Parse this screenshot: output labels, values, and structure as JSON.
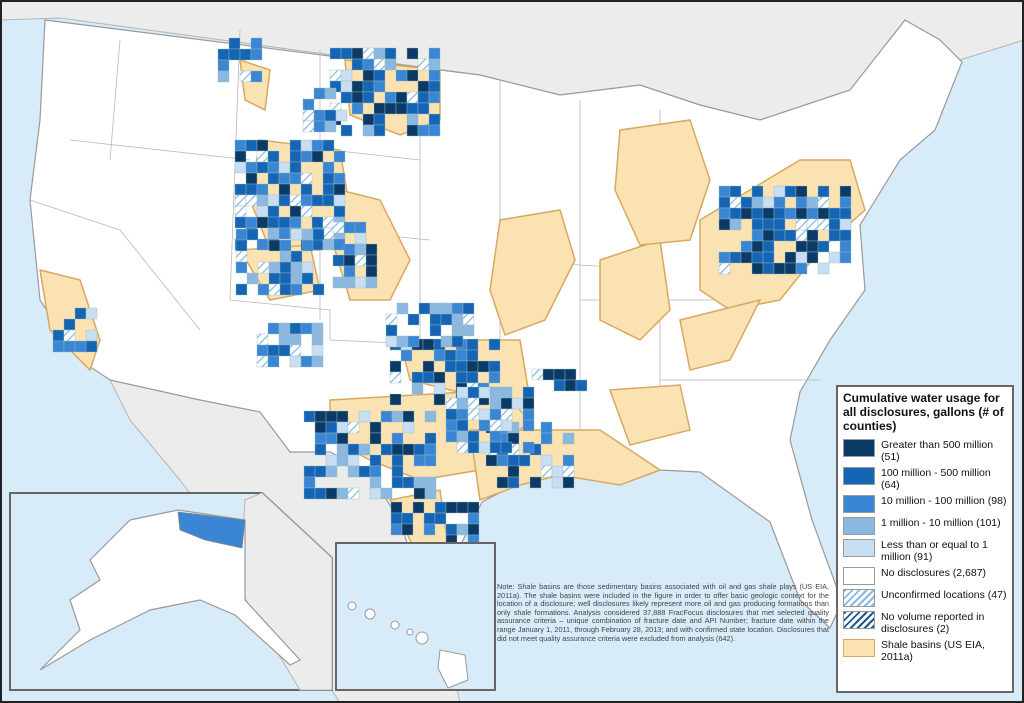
{
  "legend": {
    "title": "Cumulative water usage for all disclosures, gallons (# of counties)",
    "items": [
      {
        "label": "Greater than 500 million (51)"
      },
      {
        "label": "100 million - 500 million (64)"
      },
      {
        "label": "10 million - 100 million (98)"
      },
      {
        "label": "1 million - 10 million (101)"
      },
      {
        "label": "Less than or equal to 1 million (91)"
      },
      {
        "label": "No disclosures (2,687)"
      },
      {
        "label": "Unconfirmed locations (47)"
      },
      {
        "label": "No volume reported in disclosures (2)"
      },
      {
        "label": "Shale basins (US EIA, 2011a)"
      }
    ]
  },
  "note": "Note: Shale basins are those sedimentary basins associated with oil and gas shale plays (US EIA, 2011a). The shale basins were included in the figure in order to offer basic geologic context for the location of a disclosure; well disclosures likely represent more oil and gas producing formations than only shale formations. Analysis considered 37,888 FracFocus disclosures that met selected quality assurance criteria – unique combination of fracture date and API Number; fracture date within the range January 1, 2011, through February 28, 2013; and with confirmed state location. Disclosures that did not meet quality assurance criteria were excluded from analysis (642)."
}
